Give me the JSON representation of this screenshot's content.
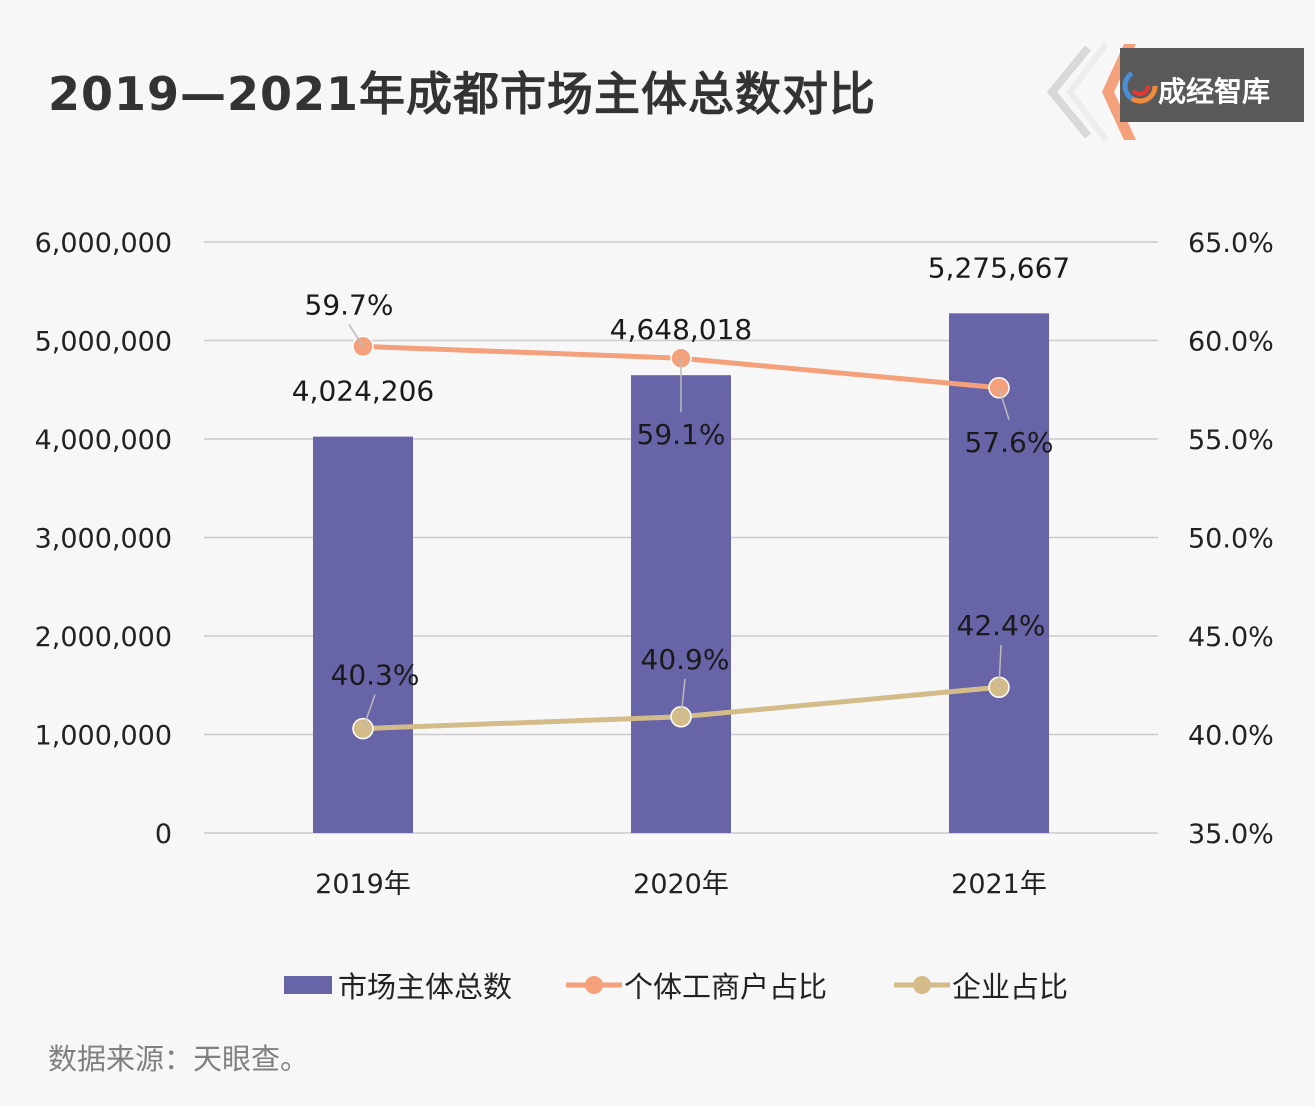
{
  "title": "2019—2021年成都市场主体总数对比",
  "logo": {
    "text": "成经智库",
    "icon": "swirl-logo-icon"
  },
  "source": "数据来源：天眼查。",
  "colors": {
    "bar": "#6864a8",
    "individual_line": "#f4a07a",
    "enterprise_line": "#d4bc8a",
    "grid": "#cccccc"
  },
  "chart_data": {
    "type": "bar",
    "title": "2019—2021年成都市场主体总数对比",
    "categories": [
      "2019年",
      "2020年",
      "2021年"
    ],
    "y_left_ticks": [
      "6,000,000",
      "5,000,000",
      "4,000,000",
      "3,000,000",
      "2,000,000",
      "1,000,000",
      "0"
    ],
    "y_right_ticks": [
      "65.0%",
      "60.0%",
      "55.0%",
      "50.0%",
      "45.0%",
      "40.0%",
      "35.0%"
    ],
    "ylim_left": [
      0,
      6000000
    ],
    "ylim_right": [
      35.0,
      65.0
    ],
    "series": [
      {
        "name": "市场主体总数",
        "type": "bar",
        "axis": "left",
        "values": [
          4024206,
          4648018,
          5275667
        ],
        "labels": [
          "4,024,206",
          "4,648,018",
          "5,275,667"
        ]
      },
      {
        "name": "个体工商户占比",
        "type": "line",
        "axis": "right",
        "values": [
          59.7,
          59.1,
          57.6
        ],
        "labels": [
          "59.7%",
          "59.1%",
          "57.6%"
        ]
      },
      {
        "name": "企业占比",
        "type": "line",
        "axis": "right",
        "values": [
          40.3,
          40.9,
          42.4
        ],
        "labels": [
          "40.3%",
          "40.9%",
          "42.4%"
        ]
      }
    ],
    "grid": true,
    "legend": "bottom"
  }
}
